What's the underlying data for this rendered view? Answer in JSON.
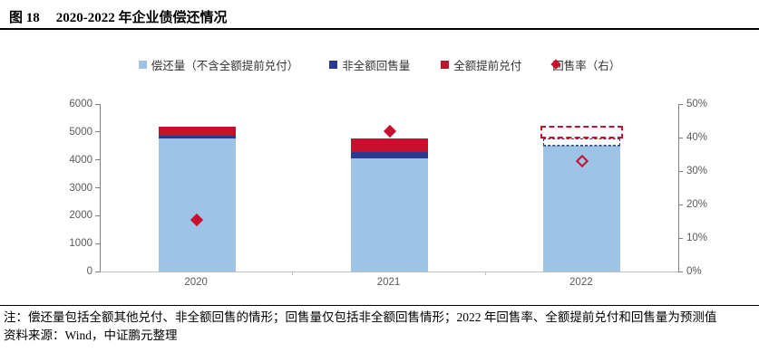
{
  "figure": {
    "label": "图 18",
    "title": "2020-2022 年企业债偿还情况"
  },
  "legend": {
    "items": [
      {
        "label": "偿还量（不含全额提前兑付）",
        "marker": "square",
        "color": "#9DC3E6"
      },
      {
        "label": "非全额回售量",
        "marker": "square",
        "color": "#2B3990"
      },
      {
        "label": "全额提前兑付",
        "marker": "square",
        "color": "#C8102E"
      },
      {
        "label": "回售率（右）",
        "marker": "diamond",
        "color": "#C8102E"
      }
    ]
  },
  "chart_data": {
    "type": "bar",
    "title": "2020-2022 年企业债偿还情况",
    "categories": [
      "2020",
      "2021",
      "2022"
    ],
    "series": [
      {
        "name": "偿还量（不含全额提前兑付）",
        "color": "#9DC3E6",
        "values": [
          4780,
          4050,
          4520
        ]
      },
      {
        "name": "非全额回售量",
        "color": "#2B3990",
        "values": [
          90,
          230,
          260
        ]
      },
      {
        "name": "全额提前兑付",
        "color": "#C8102E",
        "values": [
          320,
          490,
          440
        ]
      }
    ],
    "scatter_series": {
      "name": "回售率（右）",
      "axis": "right",
      "color": "#C8102E",
      "values_pct": [
        15.4,
        42,
        33
      ],
      "hollow": [
        false,
        false,
        true
      ]
    },
    "forecast_category_index": 2,
    "left_axis": {
      "min": 0,
      "max": 6000,
      "step": 1000,
      "tick_labels": [
        "0",
        "1000",
        "2000",
        "3000",
        "4000",
        "5000",
        "6000"
      ]
    },
    "right_axis": {
      "min": 0,
      "max": 50,
      "step": 10,
      "unit": "%",
      "tick_labels": [
        "0%",
        "10%",
        "20%",
        "30%",
        "40%",
        "50%"
      ]
    },
    "legend_position": "top",
    "grid": false
  },
  "notes": {
    "note": "注：偿还量包括全额其他兑付、非全额回售的情形；回售量仅包括非全额回售情形；2022 年回售率、全额提前兑付和回售量为预测值",
    "source": "资料来源：Wind，中证鹏元整理"
  }
}
